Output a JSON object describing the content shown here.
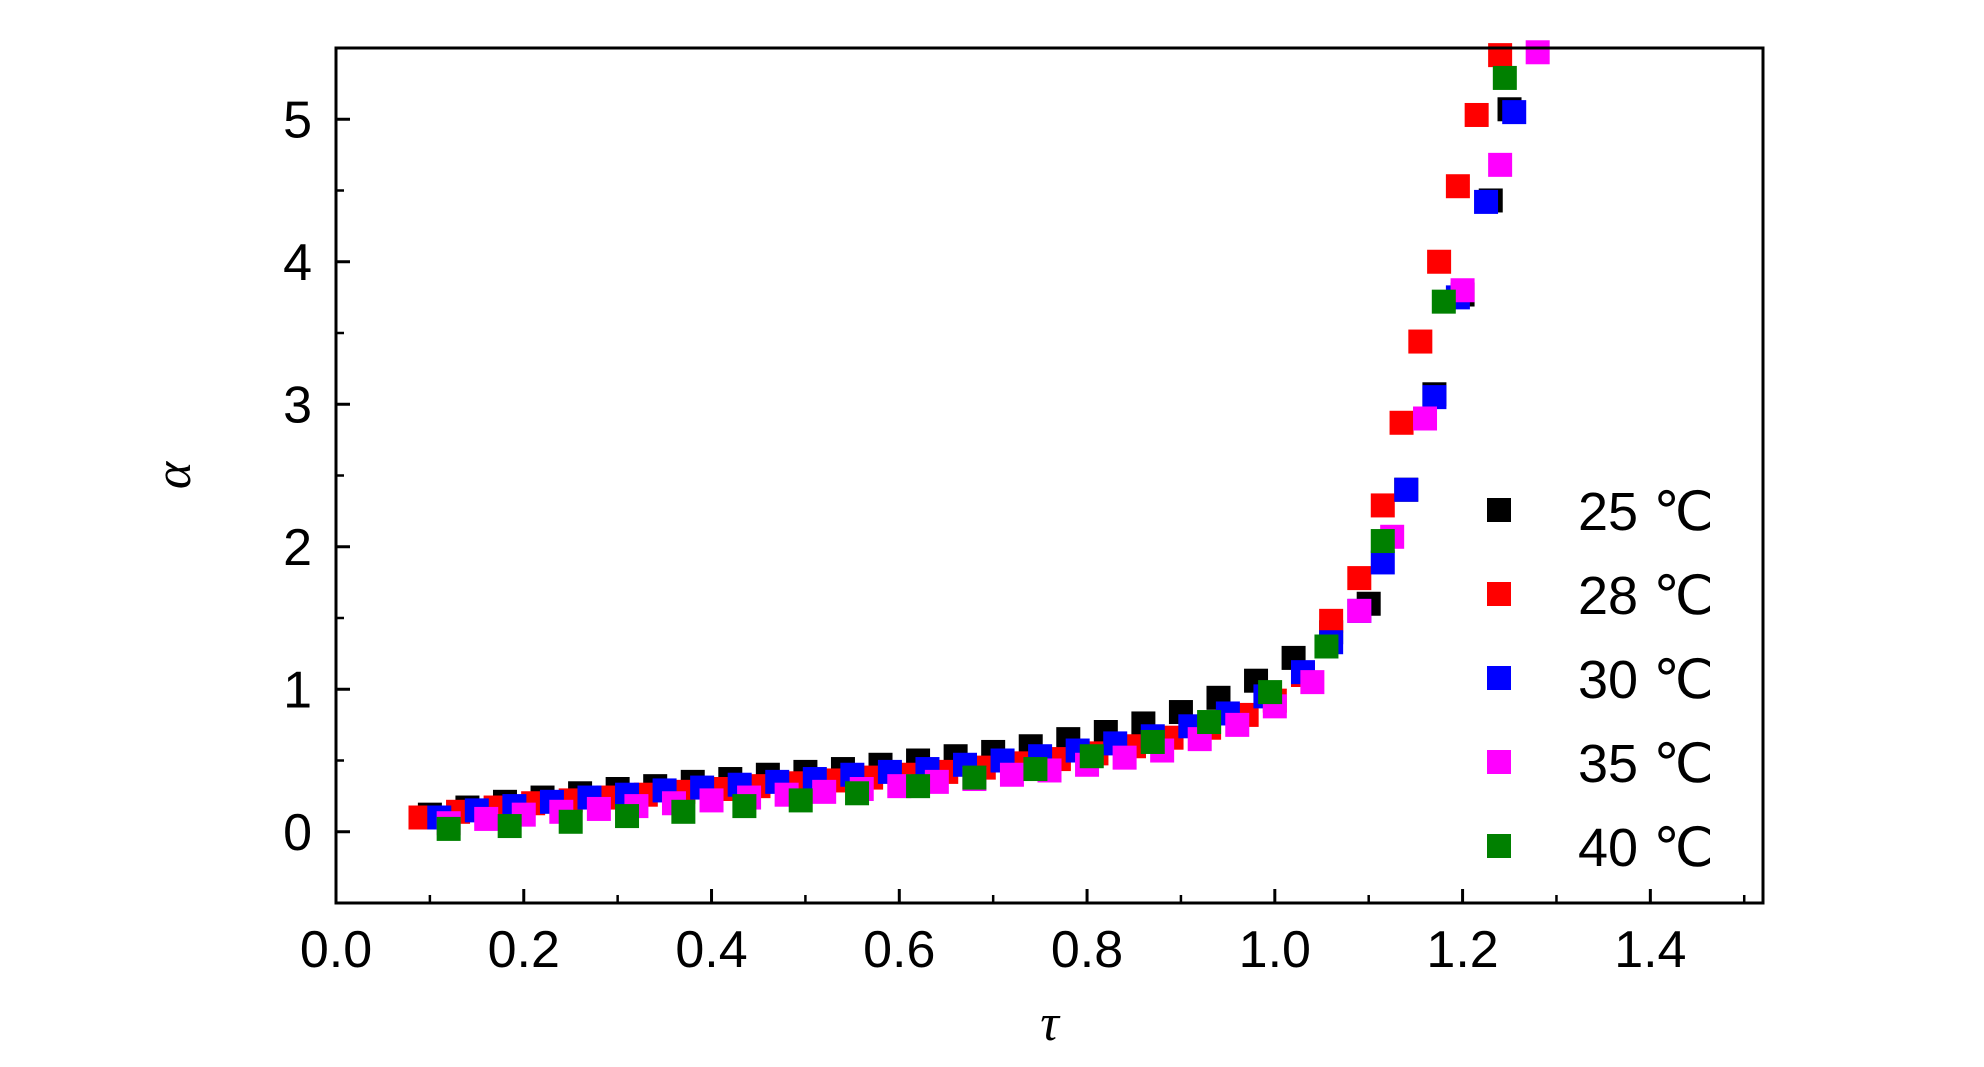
{
  "chart_data": {
    "type": "scatter",
    "title": "",
    "xlabel": "τ",
    "ylabel": "α",
    "xlim": [
      0.0,
      1.52
    ],
    "ylim": [
      -0.5,
      5.5
    ],
    "xticks": [
      0.0,
      0.2,
      0.4,
      0.6,
      0.8,
      1.0,
      1.2,
      1.4
    ],
    "xtick_labels": [
      "0.0",
      "0.2",
      "0.4",
      "0.6",
      "0.8",
      "1.0",
      "1.2",
      "1.4"
    ],
    "yticks": [
      0,
      1,
      2,
      3,
      4,
      5
    ],
    "ytick_labels": [
      "0",
      "1",
      "2",
      "3",
      "4",
      "5"
    ],
    "grid": false,
    "legend_position": "right",
    "marker": "square",
    "series": [
      {
        "name": "25 ℃",
        "color": "#000000",
        "x": [
          0.1,
          0.14,
          0.18,
          0.22,
          0.26,
          0.3,
          0.34,
          0.38,
          0.42,
          0.46,
          0.5,
          0.54,
          0.58,
          0.62,
          0.66,
          0.7,
          0.74,
          0.78,
          0.82,
          0.86,
          0.9,
          0.94,
          0.98,
          1.02,
          1.06,
          1.1,
          1.14,
          1.17,
          1.2,
          1.23,
          1.25
        ],
        "y": [
          0.12,
          0.17,
          0.21,
          0.24,
          0.27,
          0.3,
          0.32,
          0.35,
          0.37,
          0.4,
          0.42,
          0.44,
          0.47,
          0.5,
          0.53,
          0.56,
          0.6,
          0.65,
          0.7,
          0.76,
          0.84,
          0.94,
          1.06,
          1.22,
          1.4,
          1.6,
          2.4,
          3.07,
          3.77,
          4.43,
          5.07
        ]
      },
      {
        "name": "28 ℃",
        "color": "#ff0000",
        "x": [
          0.09,
          0.13,
          0.17,
          0.21,
          0.25,
          0.29,
          0.33,
          0.37,
          0.41,
          0.45,
          0.49,
          0.53,
          0.57,
          0.61,
          0.65,
          0.69,
          0.73,
          0.77,
          0.81,
          0.85,
          0.89,
          0.93,
          0.97,
          1.0,
          1.03,
          1.06,
          1.09,
          1.115,
          1.135,
          1.155,
          1.175,
          1.195,
          1.215,
          1.24
        ],
        "y": [
          0.1,
          0.14,
          0.17,
          0.2,
          0.22,
          0.24,
          0.26,
          0.28,
          0.3,
          0.32,
          0.34,
          0.36,
          0.38,
          0.4,
          0.42,
          0.45,
          0.48,
          0.51,
          0.55,
          0.6,
          0.66,
          0.73,
          0.82,
          0.92,
          1.1,
          1.48,
          1.78,
          2.29,
          2.87,
          3.44,
          4.0,
          4.53,
          5.03,
          5.45
        ]
      },
      {
        "name": "30 ℃",
        "color": "#0000ff",
        "x": [
          0.11,
          0.15,
          0.19,
          0.23,
          0.27,
          0.31,
          0.35,
          0.39,
          0.43,
          0.47,
          0.51,
          0.55,
          0.59,
          0.63,
          0.67,
          0.71,
          0.75,
          0.79,
          0.83,
          0.87,
          0.91,
          0.95,
          0.99,
          1.03,
          1.06,
          1.09,
          1.115,
          1.14,
          1.17,
          1.195,
          1.225,
          1.255
        ],
        "y": [
          0.1,
          0.15,
          0.18,
          0.21,
          0.24,
          0.26,
          0.29,
          0.31,
          0.33,
          0.35,
          0.37,
          0.4,
          0.42,
          0.44,
          0.47,
          0.5,
          0.53,
          0.57,
          0.62,
          0.67,
          0.74,
          0.83,
          0.95,
          1.12,
          1.33,
          1.55,
          1.89,
          2.4,
          3.05,
          3.75,
          4.42,
          5.05
        ]
      },
      {
        "name": "35 ℃",
        "color": "#ff00ff",
        "x": [
          0.12,
          0.16,
          0.2,
          0.24,
          0.28,
          0.32,
          0.36,
          0.4,
          0.44,
          0.48,
          0.52,
          0.56,
          0.6,
          0.64,
          0.68,
          0.72,
          0.76,
          0.8,
          0.84,
          0.88,
          0.92,
          0.96,
          1.0,
          1.04,
          1.09,
          1.125,
          1.16,
          1.2,
          1.24,
          1.28
        ],
        "y": [
          0.06,
          0.09,
          0.12,
          0.14,
          0.16,
          0.18,
          0.2,
          0.22,
          0.24,
          0.26,
          0.28,
          0.3,
          0.32,
          0.35,
          0.37,
          0.4,
          0.43,
          0.47,
          0.52,
          0.57,
          0.65,
          0.75,
          0.88,
          1.05,
          1.55,
          2.07,
          2.9,
          3.8,
          4.68,
          5.47
        ]
      },
      {
        "name": "40 ℃",
        "color": "#008000",
        "x": [
          0.12,
          0.185,
          0.25,
          0.31,
          0.37,
          0.435,
          0.495,
          0.555,
          0.62,
          0.68,
          0.745,
          0.805,
          0.87,
          0.93,
          0.995,
          1.055,
          1.115,
          1.18,
          1.245
        ],
        "y": [
          0.02,
          0.04,
          0.07,
          0.11,
          0.14,
          0.18,
          0.22,
          0.27,
          0.32,
          0.38,
          0.44,
          0.53,
          0.63,
          0.77,
          0.98,
          1.3,
          2.04,
          3.72,
          5.29
        ]
      }
    ]
  }
}
